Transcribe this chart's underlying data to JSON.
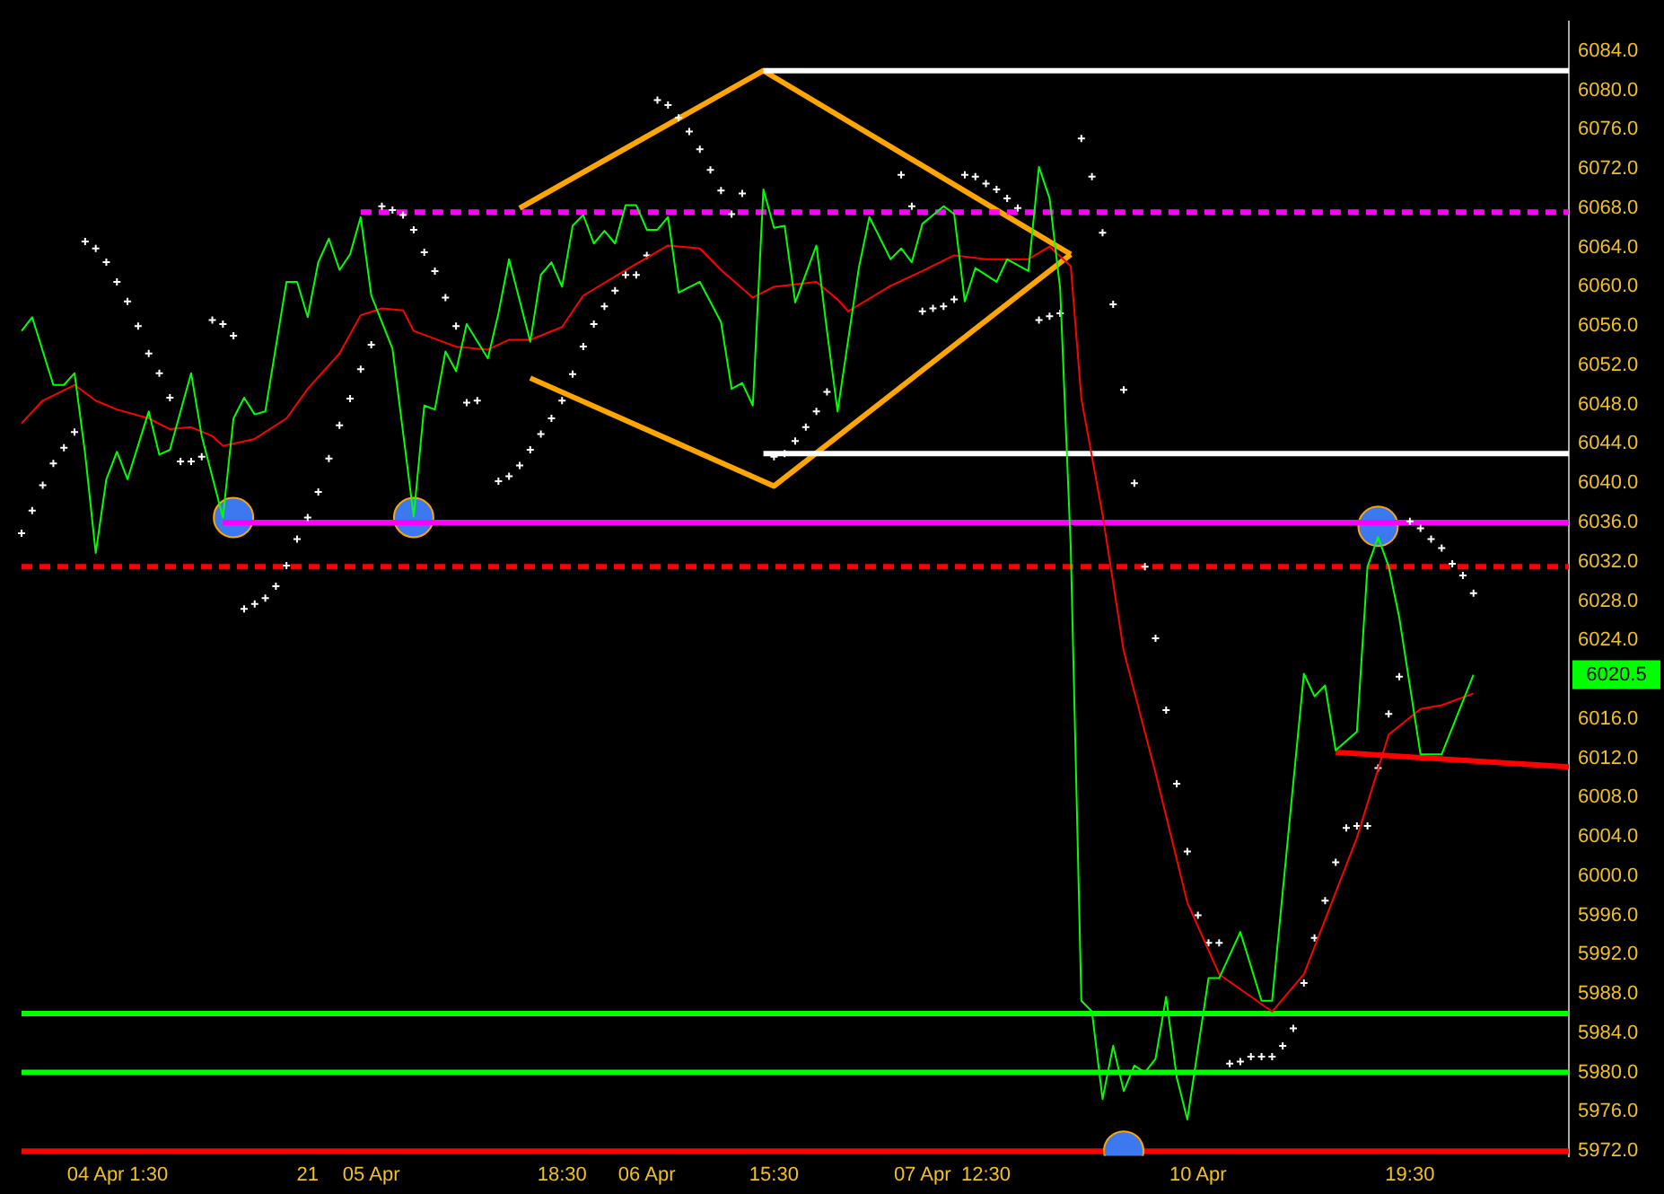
{
  "chart_data": {
    "type": "line",
    "categories": [
      null,
      null,
      null,
      null,
      null,
      null,
      null,
      "04 Apr",
      null,
      null,
      null,
      null,
      "1:30",
      null,
      null,
      null,
      null,
      null,
      null,
      null,
      null,
      null,
      null,
      null,
      null,
      null,
      null,
      "21",
      null,
      null,
      null,
      null,
      null,
      "05 Apr",
      null,
      null,
      null,
      null,
      null,
      null,
      null,
      null,
      null,
      null,
      null,
      null,
      null,
      null,
      null,
      null,
      null,
      "18:30",
      null,
      null,
      null,
      null,
      null,
      null,
      null,
      "06 Apr",
      null,
      null,
      null,
      null,
      null,
      null,
      null,
      null,
      null,
      null,
      null,
      "15:30",
      null,
      null,
      null,
      null,
      null,
      null,
      null,
      null,
      null,
      null,
      null,
      null,
      null,
      "07 Apr",
      null,
      null,
      null,
      null,
      null,
      "12:30",
      null,
      null,
      null,
      null,
      null,
      null,
      null,
      null,
      null,
      null,
      null,
      null,
      null,
      null,
      null,
      null,
      null,
      null,
      null,
      "10 Apr",
      null,
      null,
      null,
      null,
      null,
      null,
      null,
      null,
      null,
      null,
      null,
      null,
      null,
      null,
      null,
      null,
      null,
      null,
      null,
      "19:30",
      null,
      null,
      null,
      null,
      null,
      null,
      null,
      null,
      null,
      null,
      null,
      null,
      null,
      null,
      null
    ],
    "ylim": [
      5971.5,
      6087
    ],
    "yticks": [
      {
        "value": 5972,
        "label": "5972.0"
      },
      {
        "value": 5976,
        "label": "5976.0"
      },
      {
        "value": 5980,
        "label": "5980.0"
      },
      {
        "value": 5984,
        "label": "5984.0"
      },
      {
        "value": 5988,
        "label": "5988.0"
      },
      {
        "value": 5992,
        "label": "5992.0"
      },
      {
        "value": 5996,
        "label": "5996.0"
      },
      {
        "value": 6000,
        "label": "6000.0"
      },
      {
        "value": 6004,
        "label": "6004.0"
      },
      {
        "value": 6008,
        "label": "6008.0"
      },
      {
        "value": 6012,
        "label": "6012.0"
      },
      {
        "value": 6016,
        "label": "6016.0"
      },
      {
        "value": 6024,
        "label": "6024.0"
      },
      {
        "value": 6028,
        "label": "6028.0"
      },
      {
        "value": 6032,
        "label": "6032.0"
      },
      {
        "value": 6036,
        "label": "6036.0"
      },
      {
        "value": 6040,
        "label": "6040.0"
      },
      {
        "value": 6044,
        "label": "6044.0"
      },
      {
        "value": 6048,
        "label": "6048.0"
      },
      {
        "value": 6052,
        "label": "6052.0"
      },
      {
        "value": 6056,
        "label": "6056.0"
      },
      {
        "value": 6060,
        "label": "6060.0"
      },
      {
        "value": 6064,
        "label": "6064.0"
      },
      {
        "value": 6068,
        "label": "6068.0"
      },
      {
        "value": 6072,
        "label": "6072.0"
      },
      {
        "value": 6076,
        "label": "6076.0"
      },
      {
        "value": 6080,
        "label": "6080.0"
      },
      {
        "value": 6084,
        "label": "6084.0"
      }
    ],
    "grid": false,
    "legend": false,
    "series": [
      {
        "type": "line",
        "color": "#00ff00",
        "marker": "none",
        "values": [
          6055.5,
          6056.9,
          null,
          6050,
          6050,
          6051.2,
          6043,
          6032.9,
          6040.4,
          6043.2,
          6040.4,
          null,
          6047.3,
          6042.9,
          6043.4,
          null,
          6051.2,
          6044.8,
          null,
          6036.5,
          6046.6,
          6048.7,
          6047,
          6047.3,
          null,
          6060.5,
          6060.5,
          6056.9,
          6062.5,
          6064.9,
          6061.7,
          6063.3,
          6067.1,
          6059.1,
          null,
          6053.7,
          null,
          6036.6,
          6047.9,
          6047.5,
          6053.4,
          6051.4,
          6056.2,
          null,
          6052.7,
          6057.3,
          6062.8,
          null,
          6054.4,
          6061.2,
          6062.5,
          6060,
          6066.2,
          6067.3,
          6064.4,
          6065.7,
          6064.4,
          6068.3,
          6068.3,
          6065.8,
          6065.8,
          6067.1,
          6059.4,
          null,
          6060.5,
          null,
          6056.4,
          6049.6,
          6050.2,
          6047.9,
          6069.9,
          6066,
          6066.2,
          6058.4,
          null,
          6064.2,
          6055.5,
          6047.3,
          null,
          6061.9,
          6067.1,
          null,
          6062.8,
          6063.9,
          6062.5,
          6066.4,
          null,
          6068.2,
          6067.4,
          6058.5,
          6061.9,
          null,
          6060.5,
          6062.8,
          null,
          6061.6,
          6072.2,
          6069,
          6059.8,
          6033.4,
          5987.3,
          5986.2,
          5977.3,
          5982.7,
          5978.1,
          5980.7,
          5980,
          5981.4,
          5987.7,
          5979.5,
          5975.2,
          null,
          5989.6,
          5989.6,
          null,
          5994.3,
          null,
          5987.3,
          5987.3,
          null,
          null,
          6020.6,
          6018.3,
          6019.4,
          6012.8,
          null,
          6014.7,
          6031.5,
          6034.5,
          6031.5,
          6026.3,
          null,
          6012.4,
          null,
          6012.4,
          null,
          null,
          6020.5,
          null,
          null,
          null,
          null,
          null,
          null,
          null,
          null,
          null
        ]
      },
      {
        "type": "line",
        "color": "#ff0000",
        "marker": "none",
        "values": [
          6046.1,
          null,
          6048.4,
          null,
          null,
          6050,
          null,
          6048.4,
          null,
          6047.5,
          null,
          null,
          6046.6,
          null,
          6045.5,
          null,
          6045.7,
          null,
          6044.8,
          6043.8,
          null,
          null,
          6044.5,
          null,
          null,
          6046.6,
          null,
          6049.6,
          null,
          null,
          6053.2,
          null,
          6057.1,
          null,
          6057.8,
          null,
          6057.6,
          6055.5,
          null,
          null,
          null,
          6053.9,
          null,
          null,
          6053.6,
          null,
          6054.6,
          null,
          6054.6,
          null,
          null,
          6055.9,
          null,
          6059.1,
          null,
          null,
          null,
          6061.7,
          null,
          null,
          null,
          6064.2,
          null,
          null,
          6063.9,
          null,
          6061.7,
          null,
          null,
          6058.9,
          null,
          6060,
          null,
          null,
          null,
          6060.5,
          null,
          6058.7,
          6057.5,
          null,
          null,
          null,
          6060.1,
          null,
          null,
          6061.6,
          null,
          null,
          6063.2,
          null,
          null,
          6062.8,
          null,
          null,
          null,
          6062.8,
          null,
          6064.1,
          null,
          6062.1,
          6048.6,
          null,
          6036.8,
          null,
          6022.9,
          null,
          null,
          6010.5,
          null,
          null,
          5997.3,
          null,
          null,
          5990,
          null,
          null,
          null,
          null,
          5986.2,
          null,
          null,
          5990,
          null,
          null,
          null,
          null,
          6003.9,
          null,
          null,
          6014.4,
          null,
          null,
          6017,
          null,
          6017.4,
          null,
          null,
          6018.6,
          null,
          null,
          null,
          null,
          null,
          null,
          null,
          null,
          null
        ]
      },
      {
        "type": "scatter",
        "color": "#ffffff",
        "marker": "cross",
        "values": [
          6034.9,
          6037.2,
          6039.8,
          6042,
          6043.6,
          6045.2,
          6064.6,
          6063.9,
          6062.5,
          6060.5,
          6058.5,
          6056,
          6053.2,
          6051.2,
          6048.7,
          6042.2,
          6042.2,
          6042.7,
          6056.6,
          6056.2,
          6055,
          6027.2,
          6027.7,
          6028.3,
          6029.5,
          6031.6,
          6034.3,
          6036.5,
          6039.1,
          6042.5,
          6045.9,
          6048.6,
          6051.6,
          6054.1,
          6068.2,
          6067.8,
          6067.3,
          6065.8,
          6063.5,
          6061.6,
          6058.9,
          6056,
          6048.2,
          6048.4,
          null,
          6040.2,
          6040.7,
          6041.8,
          6043.4,
          6045,
          6046.6,
          6048.4,
          6051.1,
          6053.9,
          6056.2,
          6058,
          6059.6,
          6061.2,
          6061.2,
          6063.2,
          6079,
          6078.5,
          6077.2,
          6075.8,
          6074,
          6071.9,
          6069.8,
          6067.4,
          6069.5,
          null,
          null,
          6042.7,
          6043,
          6044.3,
          6045.7,
          6047.3,
          6049.3,
          null,
          null,
          null,
          null,
          null,
          null,
          6071.4,
          6068.2,
          6057.5,
          6057.8,
          6058,
          6058.7,
          6071.4,
          6071.2,
          6070.5,
          6069.9,
          6069,
          6068,
          null,
          6056.6,
          6057,
          6057.3,
          null,
          6075.1,
          6071.2,
          6065.5,
          6058.2,
          6049.5,
          6040,
          6031.5,
          6024.2,
          6016.9,
          6009.4,
          6002.5,
          5996,
          5993.2,
          5993.2,
          5980.9,
          5981.1,
          5981.6,
          5981.6,
          5981.6,
          5982.7,
          5984.5,
          5989.1,
          5993.7,
          5997.5,
          6001.4,
          6004.9,
          6005.1,
          6005.1,
          6011,
          6016.5,
          6020.3,
          6036.1,
          6035.4,
          6034.3,
          6033.4,
          6031.8,
          6030.6,
          6028.8,
          null,
          null,
          null,
          null,
          null,
          null,
          null,
          null,
          null
        ]
      },
      {
        "type": "scatter",
        "color": "#3c78f0",
        "marker": "circle",
        "values": [
          null,
          null,
          null,
          null,
          null,
          null,
          null,
          null,
          null,
          null,
          null,
          null,
          null,
          null,
          null,
          null,
          null,
          null,
          null,
          null,
          6036.5,
          null,
          null,
          null,
          null,
          null,
          null,
          null,
          null,
          null,
          null,
          null,
          null,
          null,
          null,
          null,
          null,
          6036.5,
          null,
          null,
          null,
          null,
          null,
          null,
          null,
          null,
          null,
          null,
          null,
          null,
          null,
          null,
          null,
          null,
          null,
          null,
          null,
          null,
          null,
          null,
          null,
          null,
          null,
          null,
          null,
          null,
          null,
          null,
          null,
          null,
          null,
          null,
          null,
          null,
          null,
          null,
          null,
          null,
          null,
          null,
          null,
          null,
          null,
          null,
          null,
          null,
          null,
          null,
          null,
          null,
          null,
          null,
          null,
          null,
          null,
          null,
          null,
          null,
          null,
          null,
          null,
          null,
          null,
          null,
          5972,
          null,
          null,
          null,
          null,
          null,
          null,
          null,
          null,
          null,
          null,
          null,
          null,
          null,
          null,
          null,
          null,
          null,
          null,
          null,
          null,
          null,
          null,
          null,
          6035.6,
          null,
          null,
          null,
          null,
          null,
          null,
          null,
          null,
          null,
          null,
          null,
          null,
          null,
          null,
          null,
          null,
          null,
          null
        ]
      },
      {
        "type": "line",
        "color": "#ffffff",
        "marker": "none",
        "values": [
          null,
          null,
          null,
          null,
          null,
          null,
          null,
          null,
          null,
          null,
          null,
          null,
          null,
          null,
          null,
          null,
          null,
          null,
          null,
          null,
          null,
          null,
          null,
          null,
          null,
          null,
          null,
          null,
          null,
          null,
          null,
          null,
          null,
          null,
          null,
          null,
          null,
          null,
          null,
          null,
          null,
          null,
          null,
          null,
          null,
          null,
          null,
          null,
          null,
          null,
          null,
          null,
          null,
          null,
          null,
          null,
          null,
          null,
          null,
          null,
          null,
          null,
          null,
          null,
          null,
          null,
          null,
          null,
          null,
          null,
          6082,
          null,
          null,
          null,
          null,
          null,
          null,
          null,
          null,
          null,
          null,
          null,
          null,
          null,
          null,
          null,
          null,
          null,
          null,
          null,
          null,
          null,
          null,
          null,
          null,
          null,
          null,
          null,
          null,
          null,
          null,
          null,
          null,
          null,
          null,
          null,
          null,
          null,
          null,
          null,
          null,
          null,
          null,
          null,
          null,
          null,
          null,
          null,
          null,
          null,
          null,
          null,
          null,
          null,
          null,
          null,
          null,
          null,
          null,
          null,
          null,
          null,
          null,
          null,
          null,
          null,
          null,
          null,
          null,
          null,
          null,
          null,
          null,
          null,
          null,
          null,
          6082
        ]
      },
      {
        "type": "line",
        "color": "#ffffff",
        "marker": "none",
        "values": [
          null,
          null,
          null,
          null,
          null,
          null,
          null,
          null,
          null,
          null,
          null,
          null,
          null,
          null,
          null,
          null,
          null,
          null,
          null,
          null,
          null,
          null,
          null,
          null,
          null,
          null,
          null,
          null,
          null,
          null,
          null,
          null,
          null,
          null,
          null,
          null,
          null,
          null,
          null,
          null,
          null,
          null,
          null,
          null,
          null,
          null,
          null,
          null,
          null,
          null,
          null,
          null,
          null,
          null,
          null,
          null,
          null,
          null,
          null,
          null,
          null,
          null,
          null,
          null,
          null,
          null,
          null,
          null,
          null,
          null,
          6043,
          null,
          null,
          null,
          null,
          null,
          null,
          null,
          null,
          null,
          null,
          null,
          null,
          null,
          null,
          null,
          null,
          null,
          null,
          null,
          null,
          null,
          null,
          null,
          null,
          null,
          null,
          null,
          null,
          null,
          null,
          null,
          null,
          null,
          null,
          null,
          null,
          null,
          null,
          null,
          null,
          null,
          null,
          null,
          null,
          null,
          null,
          null,
          null,
          null,
          null,
          null,
          null,
          null,
          null,
          null,
          null,
          null,
          null,
          null,
          null,
          null,
          null,
          null,
          null,
          null,
          null,
          null,
          null,
          null,
          null,
          null,
          null,
          null,
          null,
          null,
          6043
        ]
      },
      {
        "type": "line",
        "color": "#ff00ff",
        "marker": "none",
        "line_style": "dashed",
        "values": [
          null,
          null,
          null,
          null,
          null,
          null,
          null,
          null,
          null,
          null,
          null,
          null,
          null,
          null,
          null,
          null,
          null,
          null,
          null,
          null,
          null,
          null,
          null,
          null,
          null,
          null,
          null,
          null,
          null,
          null,
          null,
          null,
          6067.6,
          null,
          null,
          null,
          null,
          null,
          null,
          null,
          null,
          null,
          null,
          null,
          null,
          null,
          null,
          null,
          null,
          null,
          null,
          null,
          null,
          null,
          null,
          null,
          null,
          null,
          null,
          null,
          null,
          null,
          null,
          null,
          null,
          null,
          null,
          null,
          null,
          null,
          null,
          null,
          null,
          null,
          null,
          null,
          null,
          null,
          null,
          null,
          null,
          null,
          null,
          null,
          null,
          null,
          null,
          null,
          null,
          null,
          null,
          null,
          null,
          null,
          null,
          null,
          null,
          null,
          null,
          null,
          null,
          null,
          null,
          null,
          null,
          null,
          null,
          null,
          null,
          null,
          null,
          null,
          null,
          null,
          null,
          null,
          null,
          null,
          null,
          null,
          null,
          null,
          null,
          null,
          null,
          null,
          null,
          null,
          null,
          null,
          null,
          null,
          null,
          null,
          null,
          null,
          null,
          null,
          null,
          null,
          null,
          null,
          null,
          null,
          null,
          null,
          6067.6
        ]
      },
      {
        "type": "line",
        "color": "#ff00ff",
        "marker": "none",
        "values": [
          null,
          null,
          null,
          null,
          null,
          null,
          null,
          null,
          null,
          null,
          null,
          null,
          null,
          null,
          null,
          null,
          null,
          null,
          null,
          6036,
          null,
          null,
          null,
          null,
          null,
          null,
          null,
          null,
          null,
          null,
          null,
          null,
          null,
          null,
          null,
          null,
          null,
          null,
          null,
          null,
          null,
          null,
          null,
          null,
          null,
          null,
          null,
          null,
          null,
          null,
          null,
          null,
          null,
          null,
          null,
          null,
          null,
          null,
          null,
          null,
          null,
          null,
          null,
          null,
          null,
          null,
          null,
          null,
          null,
          null,
          null,
          null,
          null,
          null,
          null,
          null,
          null,
          null,
          null,
          null,
          null,
          null,
          null,
          null,
          null,
          null,
          null,
          null,
          null,
          null,
          null,
          null,
          null,
          null,
          null,
          null,
          null,
          null,
          null,
          null,
          null,
          null,
          null,
          null,
          null,
          null,
          null,
          null,
          null,
          null,
          null,
          null,
          null,
          null,
          null,
          null,
          null,
          null,
          null,
          null,
          null,
          null,
          null,
          null,
          null,
          null,
          null,
          null,
          null,
          null,
          null,
          null,
          null,
          null,
          null,
          null,
          null,
          null,
          null,
          null,
          null,
          null,
          null,
          null,
          null,
          null,
          6036
        ]
      },
      {
        "type": "line",
        "color": "#ffa500",
        "marker": "none",
        "values": [
          null,
          null,
          null,
          null,
          null,
          null,
          null,
          null,
          null,
          null,
          null,
          null,
          null,
          null,
          null,
          null,
          null,
          null,
          null,
          null,
          null,
          null,
          null,
          null,
          null,
          null,
          null,
          null,
          null,
          null,
          null,
          null,
          null,
          null,
          null,
          null,
          null,
          null,
          null,
          null,
          null,
          null,
          null,
          null,
          null,
          null,
          null,
          6068,
          null,
          null,
          null,
          null,
          null,
          null,
          null,
          null,
          null,
          null,
          null,
          null,
          null,
          null,
          null,
          null,
          null,
          null,
          null,
          null,
          null,
          null,
          6082,
          null,
          null,
          null,
          null,
          null,
          null,
          null,
          null,
          null,
          null,
          null,
          null,
          null,
          null,
          null,
          null,
          null,
          null,
          null,
          null,
          null,
          null,
          null,
          null,
          null,
          null,
          null,
          null,
          6063.3,
          null,
          null,
          null,
          null,
          null,
          null,
          null,
          null,
          null,
          null,
          null,
          null,
          null,
          null,
          null,
          null,
          null,
          null,
          null,
          null,
          null,
          null,
          null,
          null,
          null,
          null,
          null,
          null,
          null,
          null,
          null,
          null,
          null,
          null,
          null,
          null,
          null,
          null,
          null,
          null,
          null,
          null,
          null,
          null,
          null,
          null,
          null
        ]
      },
      {
        "type": "line",
        "color": "#ffa500",
        "marker": "none",
        "values": [
          null,
          null,
          null,
          null,
          null,
          null,
          null,
          null,
          null,
          null,
          null,
          null,
          null,
          null,
          null,
          null,
          null,
          null,
          null,
          null,
          null,
          null,
          null,
          null,
          null,
          null,
          null,
          null,
          null,
          null,
          null,
          null,
          null,
          null,
          null,
          null,
          null,
          null,
          null,
          null,
          null,
          null,
          null,
          null,
          null,
          null,
          null,
          null,
          6050.7,
          null,
          null,
          null,
          null,
          null,
          null,
          null,
          null,
          null,
          null,
          null,
          null,
          null,
          null,
          null,
          null,
          null,
          null,
          null,
          null,
          null,
          null,
          6039.7,
          null,
          null,
          null,
          null,
          null,
          null,
          null,
          null,
          null,
          null,
          null,
          null,
          null,
          null,
          null,
          null,
          null,
          null,
          null,
          null,
          null,
          null,
          null,
          null,
          null,
          null,
          null,
          6063.3,
          null,
          null,
          null,
          null,
          null,
          null,
          null,
          null,
          null,
          null,
          null,
          null,
          null,
          null,
          null,
          null,
          null,
          null,
          null,
          null,
          null,
          null,
          null,
          null,
          null,
          null,
          null,
          null,
          null,
          null,
          null,
          null,
          null,
          null,
          null,
          null,
          null,
          null,
          null,
          null,
          null,
          null,
          null,
          null,
          null,
          null,
          null
        ]
      },
      {
        "type": "line",
        "color": "#ff0000",
        "marker": "none",
        "values": [
          null,
          null,
          null,
          null,
          null,
          null,
          null,
          null,
          null,
          null,
          null,
          null,
          null,
          null,
          null,
          null,
          null,
          null,
          null,
          null,
          null,
          null,
          null,
          null,
          null,
          null,
          null,
          null,
          null,
          null,
          null,
          null,
          null,
          null,
          null,
          null,
          null,
          null,
          null,
          null,
          null,
          null,
          null,
          null,
          null,
          null,
          null,
          null,
          null,
          null,
          null,
          null,
          null,
          null,
          null,
          null,
          null,
          null,
          null,
          null,
          null,
          null,
          null,
          null,
          null,
          null,
          null,
          null,
          null,
          null,
          null,
          null,
          null,
          null,
          null,
          null,
          null,
          null,
          null,
          null,
          null,
          null,
          null,
          null,
          null,
          null,
          null,
          null,
          null,
          null,
          null,
          null,
          null,
          null,
          null,
          null,
          null,
          null,
          null,
          null,
          null,
          null,
          null,
          null,
          null,
          null,
          null,
          null,
          null,
          null,
          null,
          null,
          null,
          null,
          null,
          null,
          null,
          null,
          null,
          null,
          null,
          null,
          null,
          null,
          6012.6,
          null,
          null,
          null,
          null,
          null,
          null,
          null,
          null,
          null,
          null,
          null,
          null,
          null,
          null,
          null,
          null,
          null,
          null,
          null,
          null,
          null,
          6011.1
        ]
      }
    ],
    "ref_lines": [
      {
        "axis": "y",
        "value": 6031.5,
        "color": "#ff0000",
        "line_style": "dashed"
      },
      {
        "axis": "y",
        "value": 5986,
        "color": "#00ff00"
      },
      {
        "axis": "y",
        "value": 5980,
        "color": "#00ff00"
      },
      {
        "axis": "y",
        "value": 5972,
        "color": "#ff0000"
      }
    ],
    "annotations": [
      "6020.5"
    ]
  }
}
